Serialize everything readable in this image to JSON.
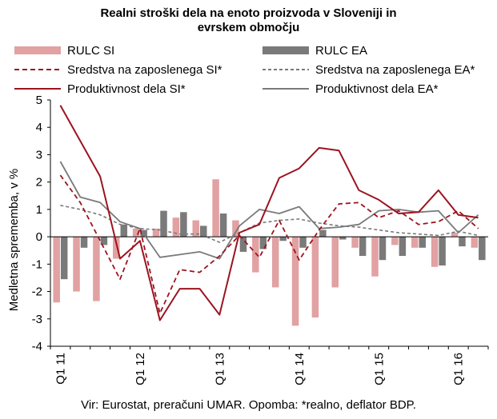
{
  "title_line1": "Realni stroški dela na enoto proizvoda v Sloveniji in",
  "title_line2": "evrskem območju",
  "footer": "Vir: Eurostat, preračuni UMAR. Opomba: *realno, deflator BDP.",
  "colors": {
    "rulc_si": "#e2a1a2",
    "rulc_ea": "#7a7a7a",
    "si_line": "#9c1420",
    "ea_line": "#7a7a7a"
  },
  "chart_data": {
    "type": "bar+line",
    "title": "Realni stroški dela na enoto proizvoda v Sloveniji in evrskem območju",
    "ylabel": "Medletna sprememba, v %",
    "ylim": [
      -4,
      5
    ],
    "yticks": [
      "5",
      "4",
      "3",
      "2",
      "1",
      "0",
      "-1",
      "-2",
      "-3",
      "-4"
    ],
    "xticklabels": [
      "Q1 11",
      "Q1 12",
      "Q1 13",
      "Q1 14",
      "Q1 15",
      "Q1 16"
    ],
    "categories": [
      "Q1 11",
      "Q2 11",
      "Q3 11",
      "Q4 11",
      "Q1 12",
      "Q2 12",
      "Q3 12",
      "Q4 12",
      "Q1 13",
      "Q2 13",
      "Q3 13",
      "Q4 13",
      "Q1 14",
      "Q2 14",
      "Q3 14",
      "Q4 14",
      "Q1 15",
      "Q2 15",
      "Q3 15",
      "Q4 15",
      "Q1 16",
      "Q2 16"
    ],
    "legend_position": "top",
    "grid": false,
    "series": [
      {
        "name": "RULC SI",
        "kind": "bar",
        "values": [
          -2.4,
          -2.0,
          -2.35,
          -0.8,
          0.3,
          0.3,
          0.7,
          0.6,
          2.1,
          0.6,
          -1.3,
          -1.85,
          -3.25,
          -2.95,
          -1.85,
          -0.4,
          -1.45,
          -0.3,
          -0.4,
          -1.1,
          0.15,
          -0.4
        ]
      },
      {
        "name": "RULC EA",
        "kind": "bar",
        "values": [
          -1.55,
          -0.4,
          -0.3,
          0.45,
          0.25,
          0.95,
          0.9,
          0.4,
          0.85,
          -0.55,
          -0.45,
          -0.15,
          -0.4,
          0.25,
          -0.1,
          -0.7,
          -0.85,
          -0.7,
          -0.4,
          -1.05,
          -0.35,
          -0.85
        ]
      },
      {
        "name": "Sredstva na zaposlenega SI*",
        "kind": "line-dashed",
        "values": [
          2.25,
          1.25,
          -0.15,
          -1.55,
          0.3,
          -2.8,
          -1.2,
          -1.3,
          -0.7,
          0.05,
          -0.75,
          0.6,
          -0.85,
          0.25,
          1.2,
          1.25,
          0.7,
          0.95,
          0.45,
          0.55,
          0.95,
          0.3
        ]
      },
      {
        "name": "Sredstva na zaposlenega EA*",
        "kind": "line-dashed",
        "values": [
          1.15,
          1.0,
          0.8,
          0.45,
          0.3,
          0.25,
          0.1,
          0.1,
          -0.2,
          0.15,
          0.5,
          0.6,
          0.65,
          0.5,
          0.4,
          0.35,
          0.25,
          0.15,
          0.1,
          0.05,
          0.2,
          0.05
        ]
      },
      {
        "name": "Produktivnost dela SI*",
        "kind": "line",
        "values": [
          4.8,
          3.5,
          2.2,
          -0.8,
          -0.15,
          -3.05,
          -1.9,
          -1.9,
          -2.85,
          0.15,
          0.45,
          2.15,
          2.5,
          3.25,
          3.15,
          1.7,
          1.35,
          0.85,
          0.9,
          1.7,
          0.8,
          0.7
        ]
      },
      {
        "name": "Produktivnost dela EA*",
        "kind": "line",
        "values": [
          2.75,
          1.45,
          1.25,
          0.55,
          0.3,
          -0.75,
          -0.65,
          -0.55,
          -0.8,
          0.4,
          1.0,
          0.85,
          1.1,
          0.3,
          0.35,
          0.45,
          0.95,
          1.0,
          0.9,
          0.95,
          0.15,
          0.8
        ]
      }
    ]
  }
}
